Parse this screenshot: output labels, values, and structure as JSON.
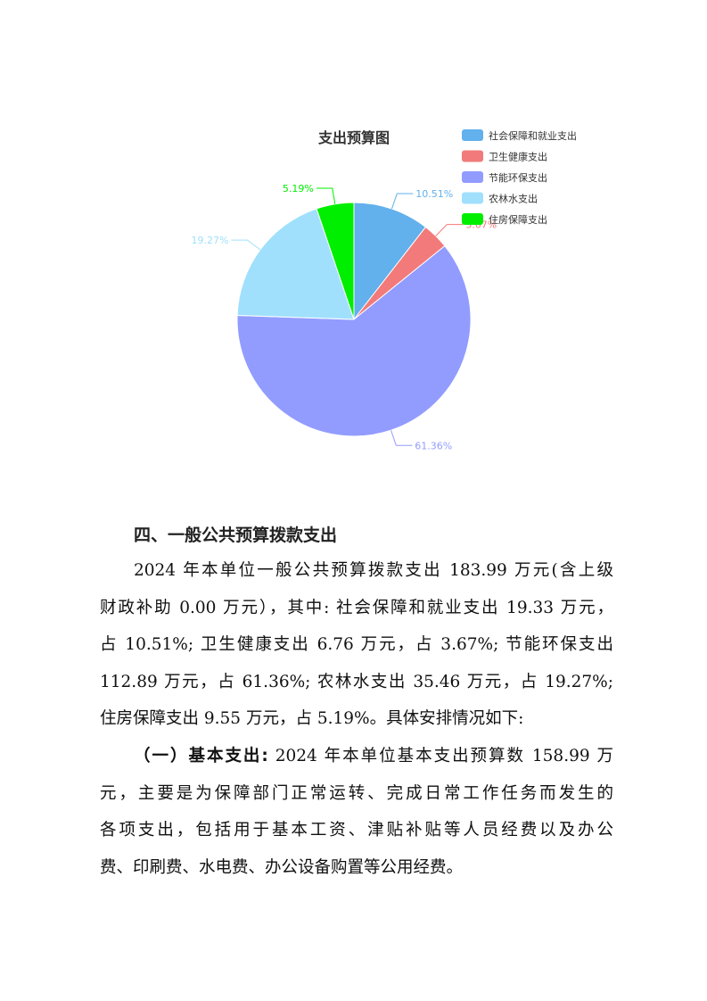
{
  "chart_data": {
    "type": "pie",
    "title": "支出预算图",
    "legend_position": "top-right",
    "slices": [
      {
        "name": "社会保障和就业支出",
        "value": 10.51,
        "label": "10.51%",
        "color": "#62b0ec"
      },
      {
        "name": "卫生健康支出",
        "value": 3.67,
        "label": "3.67%",
        "color": "#f27a7a"
      },
      {
        "name": "节能环保支出",
        "value": 61.36,
        "label": "61.36%",
        "color": "#929cff"
      },
      {
        "name": "农林水支出",
        "value": 19.27,
        "label": "19.27%",
        "color": "#a0e0fc"
      },
      {
        "name": "住房保障支出",
        "value": 5.19,
        "label": "5.19%",
        "color": "#00ee00"
      }
    ]
  },
  "section": {
    "heading": "四、一般公共预算拨款支出",
    "para1": [
      "2024 年本单位一般公共预算拨款支出 183.99 万元(含上级",
      "财政补助 0.00 万元），其中: 社会保障和就业支出 19.33 万元，",
      "占 10.51%; 卫生健康支出 6.76 万元，占 3.67%; 节能环保支出",
      "112.89 万元，占 61.36%; 农林水支出 35.46 万元，占 19.27%;",
      "住房保障支出 9.55 万元，占 5.19%。具体安排情况如下:"
    ],
    "para2_bold": "（一）基本支出:",
    "para2": [
      " 2024 年本单位基本支出预算数 158.99 万",
      "元，主要是为保障部门正常运转、完成日常工作任务而发生的",
      "各项支出，包括用于基本工资、津贴补贴等人员经费以及办公",
      "费、印刷费、水电费、办公设备购置等公用经费。"
    ]
  }
}
